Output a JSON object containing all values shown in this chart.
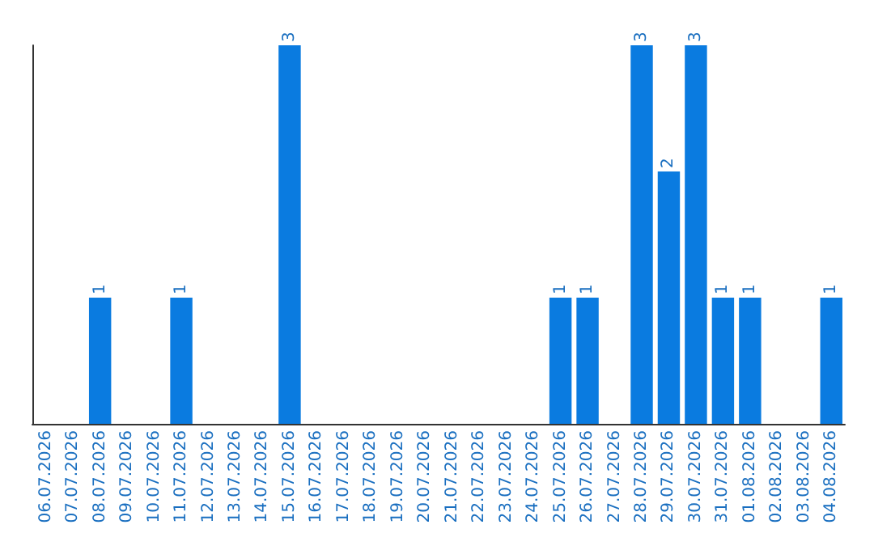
{
  "chart_data": {
    "type": "bar",
    "categories": [
      "06.07.2026",
      "07.07.2026",
      "08.07.2026",
      "09.07.2026",
      "10.07.2026",
      "11.07.2026",
      "12.07.2026",
      "13.07.2026",
      "14.07.2026",
      "15.07.2026",
      "16.07.2026",
      "17.07.2026",
      "18.07.2026",
      "19.07.2026",
      "20.07.2026",
      "21.07.2026",
      "22.07.2026",
      "23.07.2026",
      "24.07.2026",
      "25.07.2026",
      "26.07.2026",
      "27.07.2026",
      "28.07.2026",
      "29.07.2026",
      "30.07.2026",
      "31.07.2026",
      "01.08.2026",
      "02.08.2026",
      "03.08.2026",
      "04.08.2026"
    ],
    "values": [
      0,
      0,
      1,
      0,
      0,
      1,
      0,
      0,
      0,
      3,
      0,
      0,
      0,
      0,
      0,
      0,
      0,
      0,
      0,
      1,
      1,
      0,
      3,
      2,
      3,
      1,
      1,
      0,
      0,
      1
    ],
    "value_labels": [
      null,
      null,
      "1",
      null,
      null,
      "1",
      null,
      null,
      null,
      "3",
      null,
      null,
      null,
      null,
      null,
      null,
      null,
      null,
      null,
      "1",
      "1",
      null,
      "3",
      "2",
      "3",
      "1",
      "1",
      null,
      null,
      "1"
    ],
    "color": "#0a7be0"
  }
}
